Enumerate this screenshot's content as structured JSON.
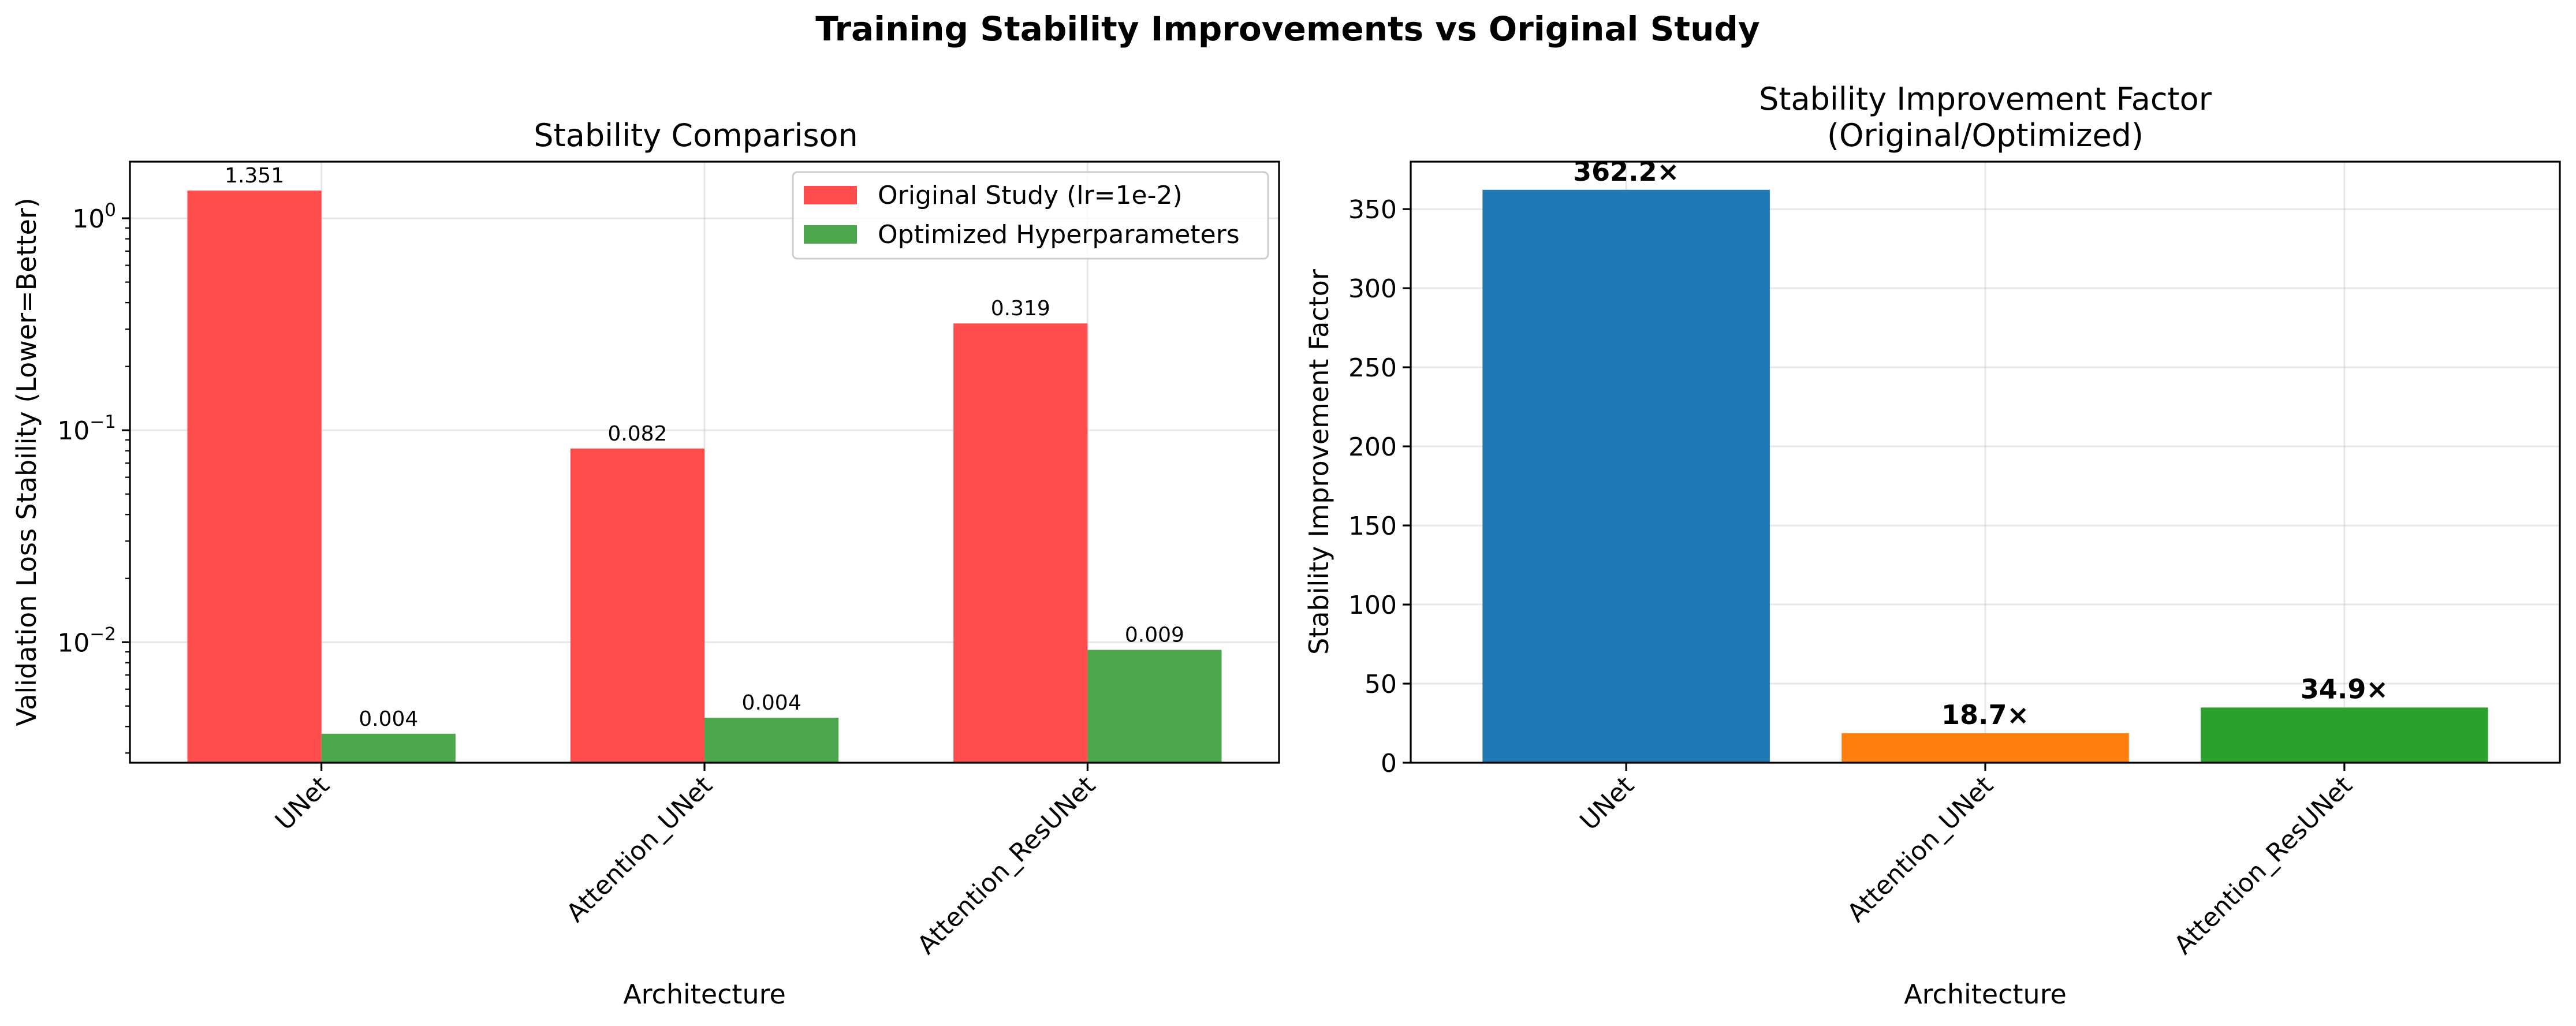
{
  "figure": {
    "title": "Training Stability Improvements vs Original Study"
  },
  "chart_data": [
    {
      "type": "bar",
      "title": "Stability Comparison",
      "xlabel": "Architecture",
      "ylabel": "Validation Loss Stability (Lower=Better)",
      "yscale": "log",
      "ylim": [
        0.0027,
        1.85
      ],
      "yticks": [
        0.01,
        0.1,
        1
      ],
      "ytick_labels": [
        {
          "base": "10",
          "exp": "−2"
        },
        {
          "base": "10",
          "exp": "−1"
        },
        {
          "base": "10",
          "exp": "0"
        }
      ],
      "categories": [
        "UNet",
        "Attention_UNet",
        "Attention_ResUNet"
      ],
      "series": [
        {
          "name": "Original Study (lr=1e-2)",
          "color": "#ff4d4d",
          "values": [
            1.351,
            0.082,
            0.319
          ],
          "labels": [
            "1.351",
            "0.082",
            "0.319"
          ]
        },
        {
          "name": "Optimized Hyperparameters",
          "color": "#4ca64c",
          "values": [
            0.0037,
            0.0044,
            0.0092
          ],
          "labels": [
            "0.004",
            "0.004",
            "0.009"
          ]
        }
      ],
      "grid": true,
      "legend_position": "top-right"
    },
    {
      "type": "bar",
      "title_lines": [
        "Stability Improvement Factor",
        "(Original/Optimized)"
      ],
      "xlabel": "Architecture",
      "ylabel": "Stability Improvement Factor",
      "ylim": [
        0,
        380
      ],
      "yticks": [
        0,
        50,
        100,
        150,
        200,
        250,
        300,
        350
      ],
      "categories": [
        "UNet",
        "Attention_UNet",
        "Attention_ResUNet"
      ],
      "values": [
        362.2,
        18.7,
        34.9
      ],
      "labels": [
        "362.2×",
        "18.7×",
        "34.9×"
      ],
      "colors": [
        "#1f77b4",
        "#ff7f0e",
        "#2ca02c"
      ],
      "grid": true
    }
  ]
}
